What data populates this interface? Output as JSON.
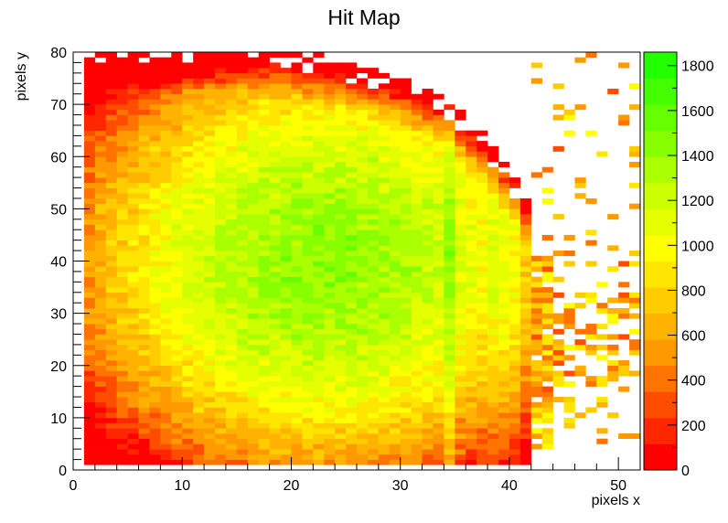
{
  "chart_data": {
    "type": "heatmap",
    "title": "Hit Map",
    "xlabel": "pixels x",
    "ylabel": "pixels y",
    "xlim": [
      0,
      52
    ],
    "ylim": [
      0,
      80
    ],
    "x_ticks": [
      "0",
      "10",
      "20",
      "30",
      "40",
      "50"
    ],
    "y_ticks": [
      "0",
      "10",
      "20",
      "30",
      "40",
      "50",
      "60",
      "70",
      "80"
    ],
    "x_tick_values": [
      0,
      10,
      20,
      30,
      40,
      50
    ],
    "y_tick_values": [
      0,
      10,
      20,
      30,
      40,
      50,
      60,
      70,
      80
    ],
    "bins": {
      "nx": 52,
      "ny": 80
    },
    "grid": false,
    "colorbar": {
      "zlim": [
        0,
        1860
      ],
      "ticks": [
        "0",
        "200",
        "400",
        "600",
        "800",
        "1000",
        "1200",
        "1400",
        "1600",
        "1800"
      ],
      "tick_values": [
        0,
        200,
        400,
        600,
        800,
        1000,
        1200,
        1400,
        1600,
        1800
      ],
      "colors": [
        "#ff0000",
        "#ff2600",
        "#ff4d00",
        "#ff7300",
        "#ff9900",
        "#ffb300",
        "#ffcc00",
        "#ffe600",
        "#ffff00",
        "#e6ff00",
        "#ccff00",
        "#aaff00",
        "#88ff00",
        "#66ff00",
        "#44ff00",
        "#22ff00"
      ]
    }
  }
}
